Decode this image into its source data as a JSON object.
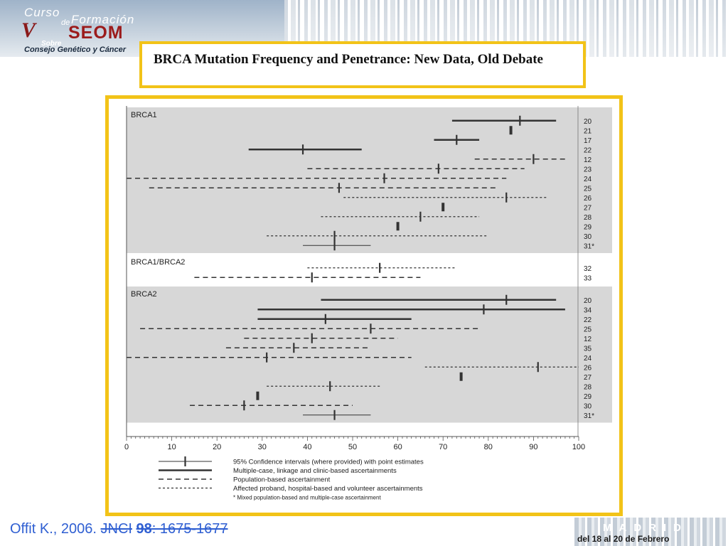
{
  "header": {
    "logo": {
      "curso": "Curso",
      "de": "de",
      "formacion": "Formación",
      "mark": "V",
      "org": "SEOM",
      "sobre": "Sobre",
      "consejo": "Consejo Genético y Cáncer"
    },
    "title": "BRCA Mutation Frequency and Penetrance: New Data, Old Debate",
    "accent_color": "#f2c318"
  },
  "chart_data": {
    "type": "forest-interval",
    "xlim": [
      0,
      100
    ],
    "xticks": [
      0,
      10,
      20,
      30,
      40,
      50,
      60,
      70,
      80,
      90,
      100
    ],
    "line_styles": {
      "solid": "Multiple-case, linkage and clinic-based ascertainments",
      "dashed": "Population-based ascertainment",
      "dotted": "Affected proband, hospital-based and volunteer ascertainments",
      "mixed": "* Mixed population-based and multiple-case ascertainment"
    },
    "legend_items": [
      {
        "style": "ci",
        "text": "95% Confidence intervals (where provided) with point estimates"
      },
      {
        "style": "solid",
        "text": "Multiple-case, linkage and clinic-based ascertainments"
      },
      {
        "style": "dashed",
        "text": "Population-based ascertainment"
      },
      {
        "style": "dotted",
        "text": "Affected proband, hospital-based and volunteer ascertainments"
      },
      {
        "style": "note",
        "text": "* Mixed population-based and multiple-case ascertainment"
      }
    ],
    "groups": [
      {
        "name": "BRCA1",
        "shaded": true,
        "rows": [
          {
            "ref": "20",
            "style": "solid",
            "low": 72,
            "est": 87,
            "high": 95
          },
          {
            "ref": "21",
            "style": "solid",
            "low": 84.5,
            "est": 85,
            "high": 85.5
          },
          {
            "ref": "17",
            "style": "solid",
            "low": 68,
            "est": 73,
            "high": 78
          },
          {
            "ref": "22",
            "style": "solid",
            "low": 27,
            "est": 39,
            "high": 52
          },
          {
            "ref": "12",
            "style": "dashed",
            "low": 77,
            "est": 90,
            "high": 97
          },
          {
            "ref": "23",
            "style": "dashed",
            "low": 40,
            "est": 69,
            "high": 88
          },
          {
            "ref": "24",
            "style": "dashed",
            "low": 0,
            "est": 57,
            "high": 84
          },
          {
            "ref": "25",
            "style": "dashed",
            "low": 5,
            "est": 47,
            "high": 82
          },
          {
            "ref": "26",
            "style": "dotted",
            "low": 48,
            "est": 84,
            "high": 93
          },
          {
            "ref": "27",
            "style": "solid",
            "low": 69.5,
            "est": 70,
            "high": 70.5
          },
          {
            "ref": "28",
            "style": "dotted",
            "low": 43,
            "est": 65,
            "high": 78
          },
          {
            "ref": "29",
            "style": "solid",
            "low": 59.5,
            "est": 60,
            "high": 60.5
          },
          {
            "ref": "30",
            "style": "dotted",
            "low": 31,
            "est": 46,
            "high": 80
          },
          {
            "ref": "31*",
            "style": "thin",
            "low": 39,
            "est": 46,
            "high": 54
          }
        ]
      },
      {
        "name": "BRCA1/BRCA2",
        "shaded": false,
        "rows": [
          {
            "ref": "32",
            "style": "dotted",
            "low": 40,
            "est": 56,
            "high": 73
          },
          {
            "ref": "33",
            "style": "dashed",
            "low": 15,
            "est": 41,
            "high": 65
          }
        ]
      },
      {
        "name": "BRCA2",
        "shaded": true,
        "rows": [
          {
            "ref": "20",
            "style": "solid",
            "low": 43,
            "est": 84,
            "high": 95
          },
          {
            "ref": "34",
            "style": "solid",
            "low": 29,
            "est": 79,
            "high": 97
          },
          {
            "ref": "22",
            "style": "solid",
            "low": 29,
            "est": 44,
            "high": 63
          },
          {
            "ref": "25",
            "style": "dashed",
            "low": 3,
            "est": 54,
            "high": 78
          },
          {
            "ref": "12",
            "style": "dashed",
            "low": 26,
            "est": 41,
            "high": 60
          },
          {
            "ref": "35",
            "style": "dashed",
            "low": 22,
            "est": 37,
            "high": 54
          },
          {
            "ref": "24",
            "style": "dashed",
            "low": 0,
            "est": 31,
            "high": 63
          },
          {
            "ref": "26",
            "style": "dotted",
            "low": 66,
            "est": 91,
            "high": 100
          },
          {
            "ref": "27",
            "style": "solid",
            "low": 73.5,
            "est": 74,
            "high": 74.5
          },
          {
            "ref": "28",
            "style": "dotted",
            "low": 31,
            "est": 45,
            "high": 56
          },
          {
            "ref": "29",
            "style": "solid",
            "low": 28.5,
            "est": 29,
            "high": 29.5
          },
          {
            "ref": "30",
            "style": "dashed",
            "low": 14,
            "est": 26,
            "high": 50
          },
          {
            "ref": "31*",
            "style": "thin",
            "low": 39,
            "est": 46,
            "high": 54
          }
        ]
      }
    ]
  },
  "footer": {
    "citation_author": "Offit K., 2006.",
    "citation_journal": "JNCI",
    "citation_volume": "98",
    "citation_pages": ": 1675-1677",
    "madrid": "MADRID",
    "dates": "del 18 al 20 de Febrero"
  }
}
